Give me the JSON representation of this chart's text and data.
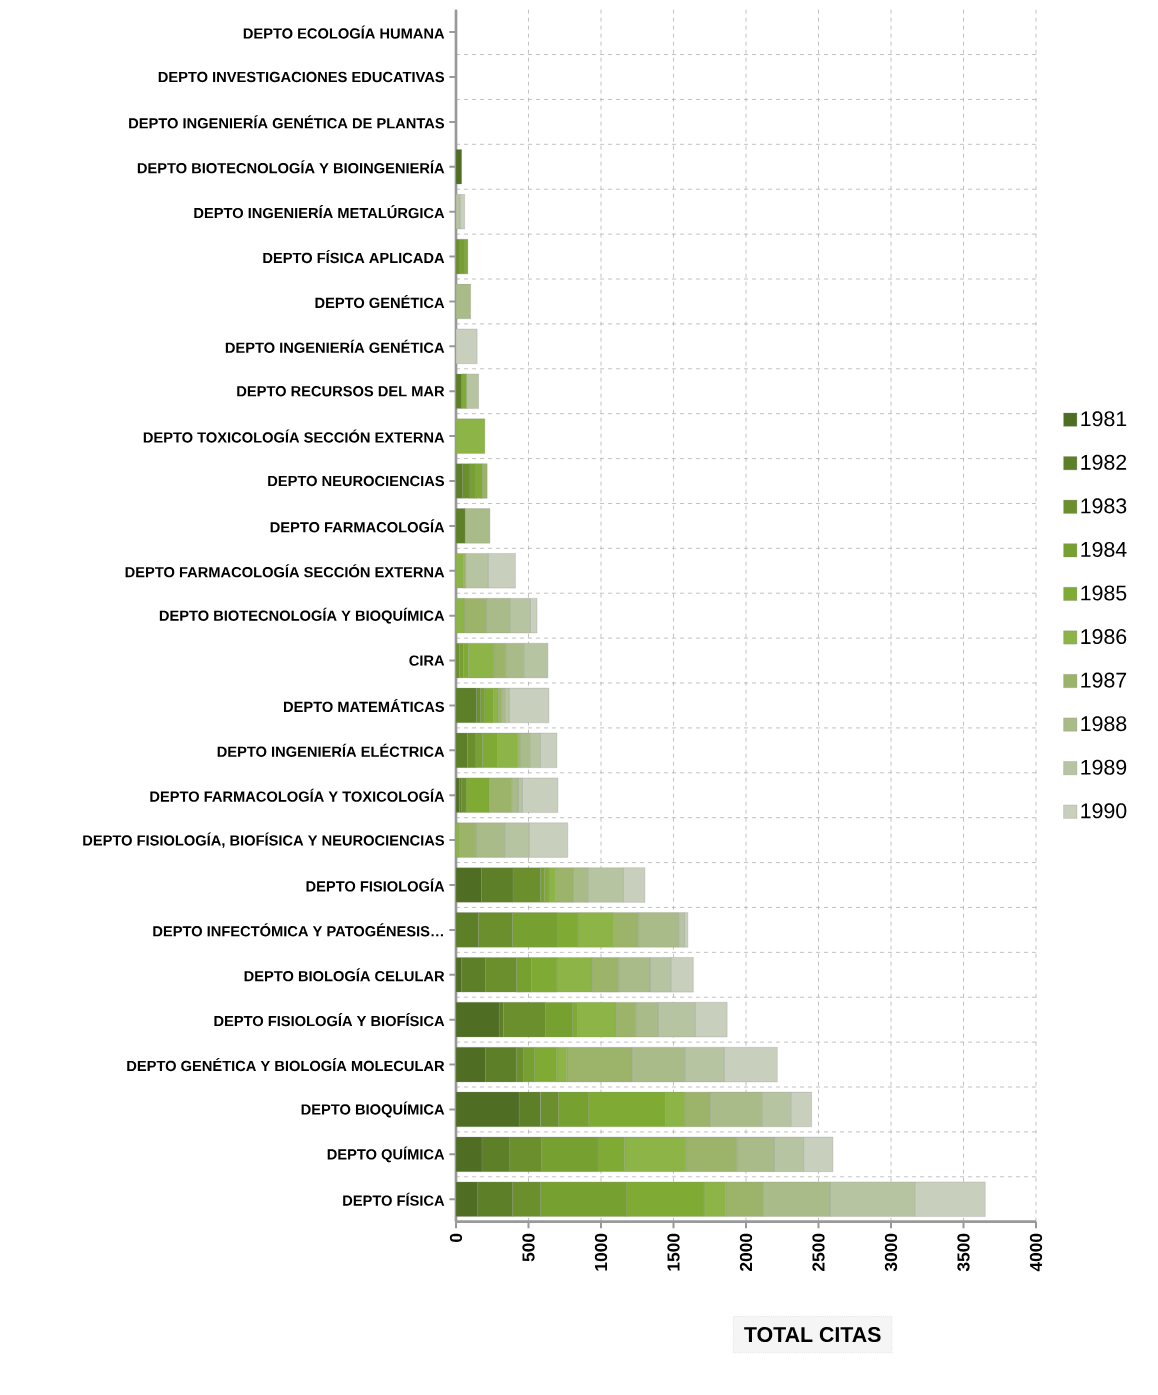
{
  "chart_data": {
    "type": "bar",
    "orientation": "horizontal",
    "stacked": true,
    "xlabel": "TOTAL CITAS",
    "grid": true,
    "legend": "right",
    "categories": [
      "DEPTO ECOLOGÍA HUMANA",
      "DEPTO INVESTIGACIONES EDUCATIVAS",
      "DEPTO INGENIERÍA GENÉTICA DE PLANTAS",
      "DEPTO BIOTECNOLOGÍA Y BIOINGENIERÍA",
      "DEPTO INGENIERÍA METALÚRGICA",
      "DEPTO FÍSICA APLICADA",
      "DEPTO GENÉTICA",
      "DEPTO INGENIERÍA GENÉTICA",
      "DEPTO RECURSOS DEL MAR",
      "DEPTO TOXICOLOGÍA SECCIÓN EXTERNA",
      "DEPTO NEUROCIENCIAS",
      "DEPTO FARMACOLOGÍA",
      "DEPTO FARMACOLOGÍA SECCIÓN EXTERNA",
      "DEPTO BIOTECNOLOGÍA Y BIOQUÍMICA",
      "CIRA",
      "DEPTO MATEMÁTICAS",
      "DEPTO INGENIERÍA ELÉCTRICA",
      "DEPTO FARMACOLOGÍA Y TOXICOLOGÍA",
      "DEPTO FISIOLOGÍA, BIOFÍSICA Y NEUROCIENCIAS",
      "DEPTO FISIOLOGÍA",
      "DEPTO INFECTÓMICA Y PATOGÉNESIS…",
      "DEPTO BIOLOGÍA CELULAR",
      "DEPTO FISIOLOGÍA Y BIOFÍSICA",
      "DEPTO GENÉTICA Y BIOLOGÍA MOLECULAR",
      "DEPTO BIOQUÍMICA",
      "DEPTO QUÍMICA",
      "DEPTO FÍSICA"
    ],
    "xlim": [
      0,
      4000
    ],
    "xticks": [
      0,
      500,
      1000,
      1500,
      2000,
      2500,
      3000,
      3500,
      4000
    ],
    "series": [
      {
        "name": "1981",
        "color": "#4f6e23",
        "values": [
          0,
          0,
          0,
          39,
          0,
          0,
          0,
          0,
          0,
          0,
          0,
          0,
          0,
          0,
          0,
          0,
          0,
          23,
          0,
          176,
          0,
          39,
          297,
          204,
          435,
          179,
          150
        ]
      },
      {
        "name": "1982",
        "color": "#5d7f28",
        "values": [
          0,
          0,
          0,
          0,
          0,
          0,
          0,
          0,
          39,
          0,
          46,
          62,
          0,
          0,
          0,
          142,
          78,
          16,
          0,
          217,
          154,
          165,
          30,
          211,
          149,
          192,
          241
        ]
      },
      {
        "name": "1983",
        "color": "#6a8f2c",
        "values": [
          0,
          0,
          0,
          0,
          0,
          27,
          0,
          0,
          0,
          0,
          50,
          0,
          0,
          0,
          23,
          28,
          59,
          30,
          0,
          189,
          236,
          213,
          291,
          52,
          121,
          220,
          193
        ]
      },
      {
        "name": "1984",
        "color": "#76a030",
        "values": [
          0,
          0,
          0,
          0,
          0,
          28,
          0,
          0,
          0,
          0,
          41,
          0,
          0,
          0,
          27,
          29,
          46,
          0,
          0,
          29,
          307,
          103,
          183,
          76,
          206,
          388,
          589
        ]
      },
      {
        "name": "1985",
        "color": "#7fab35",
        "values": [
          0,
          0,
          0,
          0,
          0,
          27,
          0,
          0,
          34,
          0,
          46,
          0,
          0,
          0,
          35,
          58,
          103,
          160,
          0,
          30,
          144,
          176,
          38,
          152,
          534,
          184,
          537
        ]
      },
      {
        "name": "1986",
        "color": "#8cb446",
        "values": [
          0,
          0,
          0,
          0,
          0,
          0,
          0,
          0,
          0,
          199,
          0,
          0,
          50,
          55,
          176,
          34,
          138,
          0,
          23,
          46,
          245,
          243,
          266,
          69,
          133,
          422,
          150
        ]
      },
      {
        "name": "1987",
        "color": "#9bb46a",
        "values": [
          0,
          0,
          0,
          0,
          0,
          0,
          0,
          0,
          0,
          0,
          32,
          0,
          16,
          156,
          82,
          23,
          16,
          154,
          114,
          123,
          174,
          183,
          135,
          452,
          175,
          351,
          260
        ]
      },
      {
        "name": "1988",
        "color": "#a9bb88",
        "values": [
          0,
          0,
          0,
          0,
          0,
          0,
          101,
          0,
          0,
          0,
          0,
          172,
          0,
          160,
          124,
          23,
          68,
          45,
          199,
          99,
          275,
          217,
          156,
          362,
          356,
          257,
          461
        ]
      },
      {
        "name": "1989",
        "color": "#b7c4a2",
        "values": [
          0,
          0,
          0,
          0,
          27,
          0,
          0,
          0,
          83,
          0,
          0,
          0,
          156,
          142,
          167,
          29,
          74,
          30,
          167,
          245,
          41,
          143,
          252,
          270,
          200,
          204,
          586
        ]
      },
      {
        "name": "1990",
        "color": "#c8cfbd",
        "values": [
          0,
          0,
          0,
          0,
          33,
          0,
          0,
          146,
          0,
          0,
          0,
          0,
          188,
          46,
          0,
          275,
          114,
          245,
          268,
          149,
          23,
          155,
          222,
          368,
          144,
          203,
          483
        ]
      }
    ]
  }
}
